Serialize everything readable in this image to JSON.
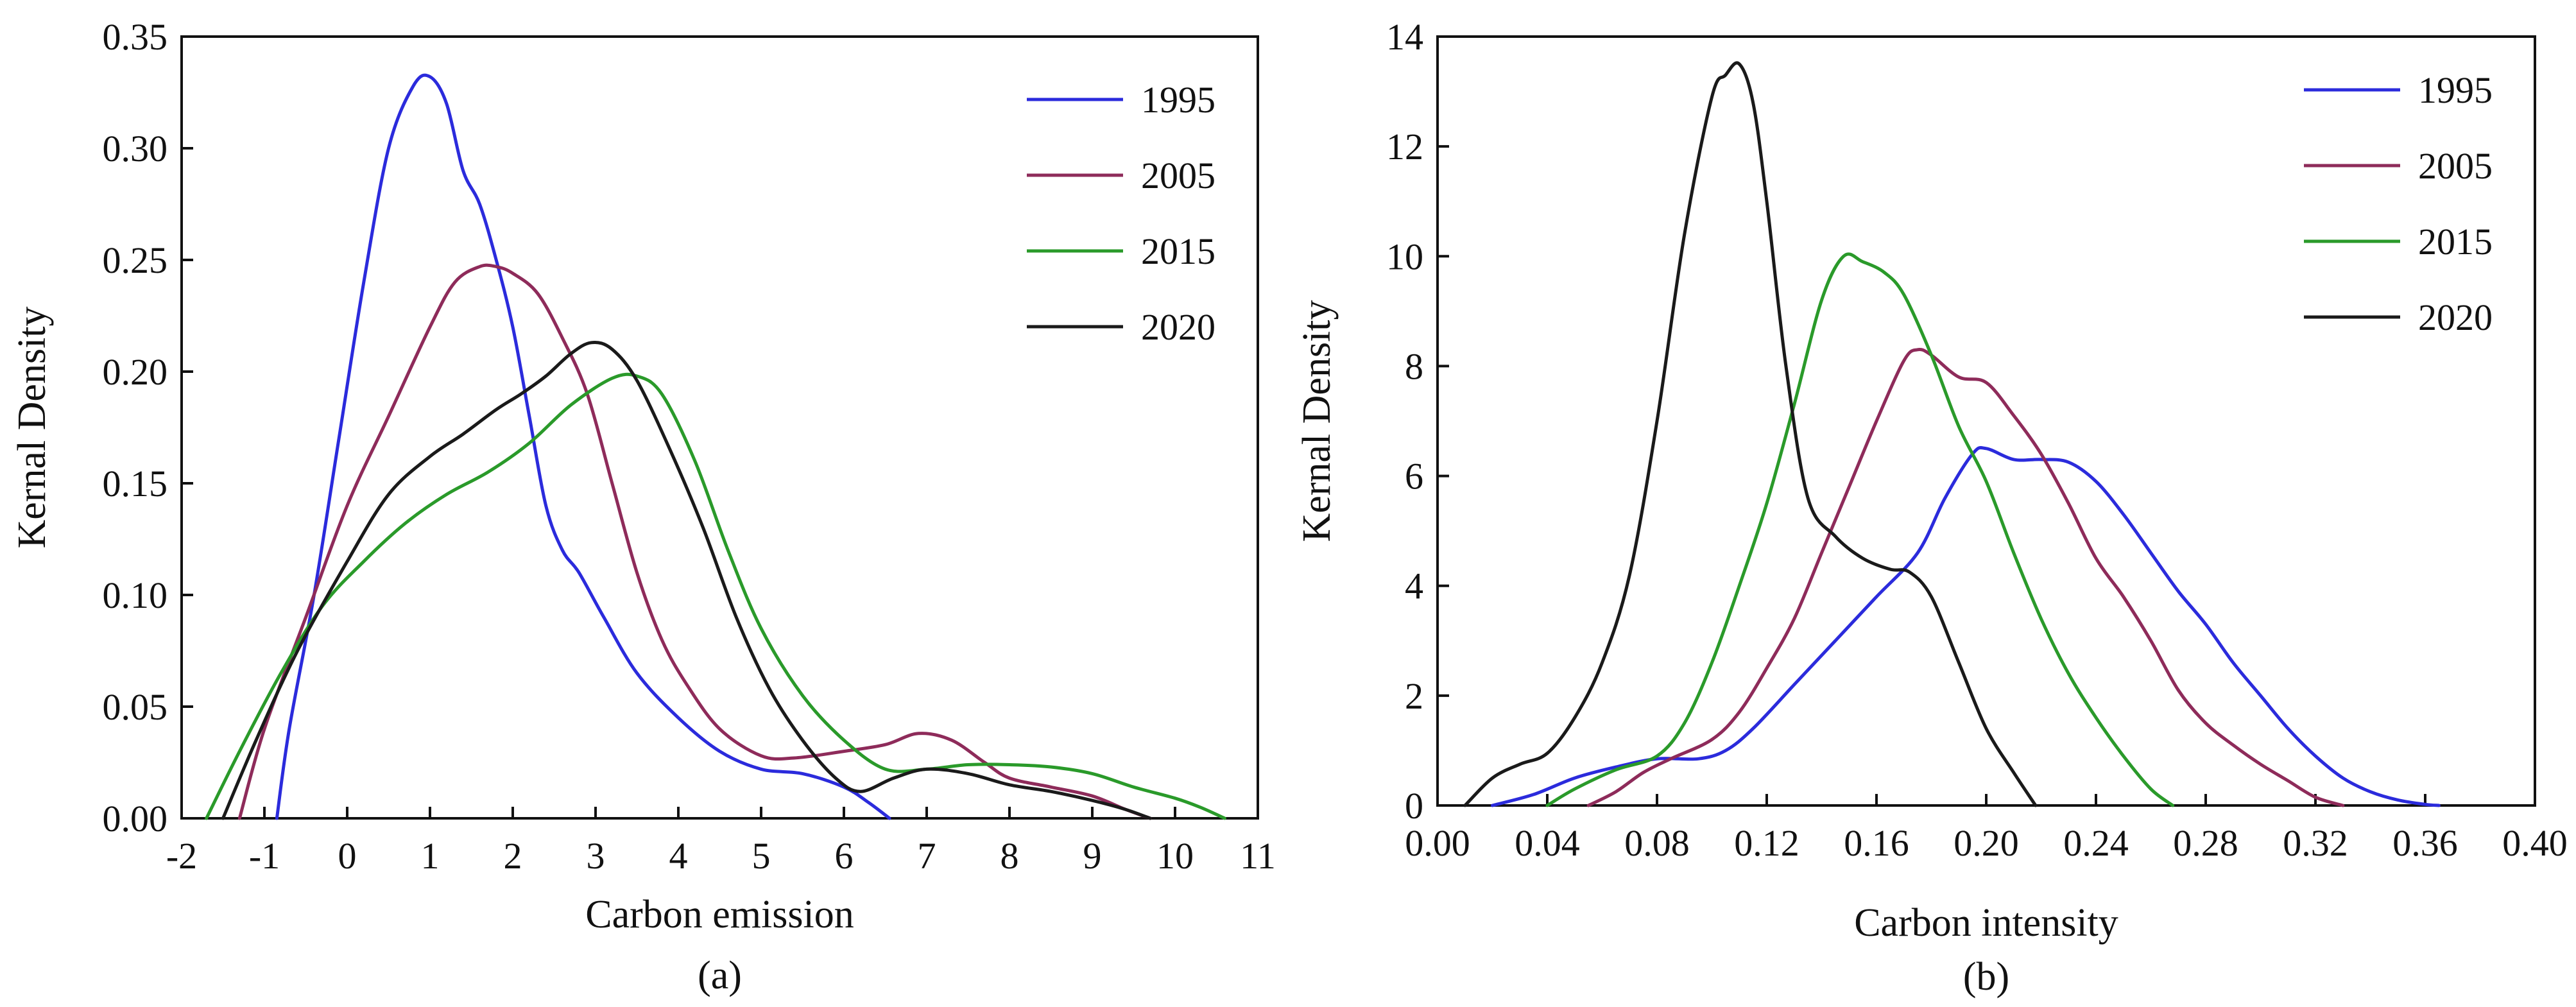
{
  "chart_data": [
    {
      "type": "line",
      "panel_label": "(a)",
      "xlabel": "Carbon emission",
      "ylabel": "Kernal Density",
      "xlim": [
        -2,
        11
      ],
      "ylim": [
        0,
        0.35
      ],
      "x_ticks": [
        -2,
        -1,
        0,
        1,
        2,
        3,
        4,
        5,
        6,
        7,
        8,
        9,
        10,
        11
      ],
      "x_tick_labels": [
        "-2",
        "-1",
        "0",
        "1",
        "2",
        "3",
        "4",
        "5",
        "6",
        "7",
        "8",
        "9",
        "10",
        "11"
      ],
      "y_ticks": [
        0,
        0.05,
        0.1,
        0.15,
        0.2,
        0.25,
        0.3,
        0.35
      ],
      "y_tick_labels": [
        "0.00",
        "0.05",
        "0.10",
        "0.15",
        "0.20",
        "0.25",
        "0.30",
        "0.35"
      ],
      "legend_position": "top-right",
      "grid": false,
      "series": [
        {
          "name": "1995",
          "color": "#2b2bdc",
          "points": [
            [
              -0.85,
              0
            ],
            [
              -0.7,
              0.04
            ],
            [
              -0.4,
              0.1
            ],
            [
              -0.1,
              0.17
            ],
            [
              0.2,
              0.24
            ],
            [
              0.5,
              0.3
            ],
            [
              0.8,
              0.328
            ],
            [
              1.0,
              0.332
            ],
            [
              1.2,
              0.32
            ],
            [
              1.4,
              0.29
            ],
            [
              1.6,
              0.275
            ],
            [
              1.8,
              0.25
            ],
            [
              2.0,
              0.22
            ],
            [
              2.2,
              0.18
            ],
            [
              2.4,
              0.14
            ],
            [
              2.6,
              0.12
            ],
            [
              2.8,
              0.11
            ],
            [
              3.1,
              0.09
            ],
            [
              3.5,
              0.065
            ],
            [
              4.0,
              0.045
            ],
            [
              4.5,
              0.03
            ],
            [
              5.0,
              0.022
            ],
            [
              5.5,
              0.02
            ],
            [
              6.0,
              0.014
            ],
            [
              6.3,
              0.007
            ],
            [
              6.55,
              0
            ]
          ]
        },
        {
          "name": "2005",
          "color": "#8e2b5a",
          "points": [
            [
              -1.3,
              0
            ],
            [
              -1.0,
              0.04
            ],
            [
              -0.5,
              0.09
            ],
            [
              0,
              0.14
            ],
            [
              0.5,
              0.18
            ],
            [
              1.0,
              0.22
            ],
            [
              1.3,
              0.24
            ],
            [
              1.6,
              0.247
            ],
            [
              1.8,
              0.247
            ],
            [
              2.0,
              0.244
            ],
            [
              2.3,
              0.235
            ],
            [
              2.6,
              0.215
            ],
            [
              2.9,
              0.19
            ],
            [
              3.2,
              0.15
            ],
            [
              3.5,
              0.11
            ],
            [
              3.8,
              0.08
            ],
            [
              4.1,
              0.06
            ],
            [
              4.5,
              0.04
            ],
            [
              5.0,
              0.028
            ],
            [
              5.4,
              0.027
            ],
            [
              6.0,
              0.03
            ],
            [
              6.5,
              0.033
            ],
            [
              6.9,
              0.038
            ],
            [
              7.3,
              0.035
            ],
            [
              7.7,
              0.025
            ],
            [
              8.0,
              0.018
            ],
            [
              8.5,
              0.014
            ],
            [
              9.0,
              0.01
            ],
            [
              9.4,
              0.004
            ],
            [
              9.7,
              0
            ]
          ]
        },
        {
          "name": "2015",
          "color": "#2a9a2a",
          "points": [
            [
              -1.7,
              0
            ],
            [
              -1.3,
              0.03
            ],
            [
              -0.8,
              0.065
            ],
            [
              -0.3,
              0.095
            ],
            [
              0.2,
              0.115
            ],
            [
              0.7,
              0.132
            ],
            [
              1.2,
              0.145
            ],
            [
              1.7,
              0.155
            ],
            [
              2.2,
              0.168
            ],
            [
              2.7,
              0.185
            ],
            [
              3.2,
              0.197
            ],
            [
              3.5,
              0.198
            ],
            [
              3.8,
              0.19
            ],
            [
              4.2,
              0.16
            ],
            [
              4.6,
              0.12
            ],
            [
              5.0,
              0.085
            ],
            [
              5.5,
              0.055
            ],
            [
              6.0,
              0.035
            ],
            [
              6.5,
              0.022
            ],
            [
              7.0,
              0.022
            ],
            [
              7.5,
              0.024
            ],
            [
              8.0,
              0.024
            ],
            [
              8.5,
              0.023
            ],
            [
              9.0,
              0.02
            ],
            [
              9.5,
              0.014
            ],
            [
              10.0,
              0.009
            ],
            [
              10.3,
              0.005
            ],
            [
              10.6,
              0
            ]
          ]
        },
        {
          "name": "2020",
          "color": "#1a1a1a",
          "points": [
            [
              -1.5,
              0
            ],
            [
              -1.1,
              0.035
            ],
            [
              -0.6,
              0.075
            ],
            [
              0,
              0.115
            ],
            [
              0.5,
              0.145
            ],
            [
              1.0,
              0.162
            ],
            [
              1.4,
              0.172
            ],
            [
              1.8,
              0.183
            ],
            [
              2.1,
              0.19
            ],
            [
              2.4,
              0.198
            ],
            [
              2.7,
              0.208
            ],
            [
              2.95,
              0.213
            ],
            [
              3.2,
              0.21
            ],
            [
              3.5,
              0.196
            ],
            [
              3.9,
              0.165
            ],
            [
              4.3,
              0.13
            ],
            [
              4.7,
              0.09
            ],
            [
              5.1,
              0.058
            ],
            [
              5.5,
              0.035
            ],
            [
              5.9,
              0.018
            ],
            [
              6.2,
              0.012
            ],
            [
              6.6,
              0.018
            ],
            [
              7.0,
              0.022
            ],
            [
              7.5,
              0.02
            ],
            [
              8.0,
              0.015
            ],
            [
              8.5,
              0.012
            ],
            [
              9.0,
              0.008
            ],
            [
              9.4,
              0.004
            ],
            [
              9.7,
              0
            ]
          ]
        }
      ]
    },
    {
      "type": "line",
      "panel_label": "(b)",
      "xlabel": "Carbon intensity",
      "ylabel": "Kernal Density",
      "xlim": [
        0,
        0.4
      ],
      "ylim": [
        0,
        14
      ],
      "x_ticks": [
        0,
        0.04,
        0.08,
        0.12,
        0.16,
        0.2,
        0.24,
        0.28,
        0.32,
        0.36,
        0.4
      ],
      "x_tick_labels": [
        "0.00",
        "0.04",
        "0.08",
        "0.12",
        "0.16",
        "0.20",
        "0.24",
        "0.28",
        "0.32",
        "0.36",
        "0.40"
      ],
      "y_ticks": [
        0,
        2,
        4,
        6,
        8,
        10,
        12,
        14
      ],
      "y_tick_labels": [
        "0",
        "2",
        "4",
        "6",
        "8",
        "10",
        "12",
        "14"
      ],
      "legend_position": "top-right",
      "grid": false,
      "series": [
        {
          "name": "1995",
          "color": "#2b2bdc",
          "points": [
            [
              0.02,
              0
            ],
            [
              0.035,
              0.2
            ],
            [
              0.05,
              0.5
            ],
            [
              0.065,
              0.7
            ],
            [
              0.08,
              0.85
            ],
            [
              0.095,
              0.85
            ],
            [
              0.105,
              1.0
            ],
            [
              0.115,
              1.4
            ],
            [
              0.13,
              2.2
            ],
            [
              0.145,
              3.0
            ],
            [
              0.16,
              3.8
            ],
            [
              0.175,
              4.6
            ],
            [
              0.185,
              5.6
            ],
            [
              0.195,
              6.4
            ],
            [
              0.2,
              6.5
            ],
            [
              0.21,
              6.3
            ],
            [
              0.22,
              6.3
            ],
            [
              0.23,
              6.25
            ],
            [
              0.24,
              5.9
            ],
            [
              0.25,
              5.3
            ],
            [
              0.26,
              4.6
            ],
            [
              0.27,
              3.9
            ],
            [
              0.28,
              3.3
            ],
            [
              0.29,
              2.6
            ],
            [
              0.3,
              2.0
            ],
            [
              0.31,
              1.4
            ],
            [
              0.32,
              0.9
            ],
            [
              0.33,
              0.5
            ],
            [
              0.34,
              0.25
            ],
            [
              0.35,
              0.1
            ],
            [
              0.36,
              0.02
            ],
            [
              0.365,
              0
            ]
          ]
        },
        {
          "name": "2005",
          "color": "#8e2b5a",
          "points": [
            [
              0.055,
              0
            ],
            [
              0.065,
              0.25
            ],
            [
              0.075,
              0.6
            ],
            [
              0.085,
              0.85
            ],
            [
              0.1,
              1.2
            ],
            [
              0.11,
              1.7
            ],
            [
              0.12,
              2.5
            ],
            [
              0.13,
              3.4
            ],
            [
              0.14,
              4.6
            ],
            [
              0.15,
              5.8
            ],
            [
              0.16,
              7.0
            ],
            [
              0.17,
              8.1
            ],
            [
              0.175,
              8.3
            ],
            [
              0.18,
              8.2
            ],
            [
              0.19,
              7.8
            ],
            [
              0.2,
              7.7
            ],
            [
              0.21,
              7.1
            ],
            [
              0.22,
              6.4
            ],
            [
              0.23,
              5.5
            ],
            [
              0.24,
              4.5
            ],
            [
              0.25,
              3.8
            ],
            [
              0.26,
              3.0
            ],
            [
              0.27,
              2.1
            ],
            [
              0.28,
              1.5
            ],
            [
              0.29,
              1.1
            ],
            [
              0.3,
              0.75
            ],
            [
              0.31,
              0.45
            ],
            [
              0.32,
              0.15
            ],
            [
              0.33,
              0
            ]
          ]
        },
        {
          "name": "2015",
          "color": "#2a9a2a",
          "points": [
            [
              0.04,
              0
            ],
            [
              0.05,
              0.3
            ],
            [
              0.065,
              0.65
            ],
            [
              0.08,
              0.9
            ],
            [
              0.09,
              1.5
            ],
            [
              0.1,
              2.6
            ],
            [
              0.11,
              4.0
            ],
            [
              0.12,
              5.5
            ],
            [
              0.13,
              7.3
            ],
            [
              0.14,
              9.2
            ],
            [
              0.148,
              10.0
            ],
            [
              0.155,
              9.9
            ],
            [
              0.163,
              9.7
            ],
            [
              0.17,
              9.3
            ],
            [
              0.18,
              8.2
            ],
            [
              0.19,
              6.9
            ],
            [
              0.2,
              5.9
            ],
            [
              0.21,
              4.6
            ],
            [
              0.22,
              3.4
            ],
            [
              0.23,
              2.4
            ],
            [
              0.24,
              1.6
            ],
            [
              0.25,
              0.9
            ],
            [
              0.26,
              0.3
            ],
            [
              0.268,
              0
            ]
          ]
        },
        {
          "name": "2020",
          "color": "#1a1a1a",
          "points": [
            [
              0.01,
              0
            ],
            [
              0.02,
              0.5
            ],
            [
              0.03,
              0.75
            ],
            [
              0.04,
              0.95
            ],
            [
              0.05,
              1.6
            ],
            [
              0.06,
              2.6
            ],
            [
              0.07,
              4.2
            ],
            [
              0.08,
              7.0
            ],
            [
              0.09,
              10.4
            ],
            [
              0.1,
              12.9
            ],
            [
              0.105,
              13.3
            ],
            [
              0.11,
              13.5
            ],
            [
              0.115,
              12.8
            ],
            [
              0.12,
              11.0
            ],
            [
              0.127,
              8.0
            ],
            [
              0.135,
              5.6
            ],
            [
              0.145,
              4.9
            ],
            [
              0.155,
              4.5
            ],
            [
              0.165,
              4.3
            ],
            [
              0.172,
              4.25
            ],
            [
              0.18,
              3.8
            ],
            [
              0.19,
              2.6
            ],
            [
              0.2,
              1.4
            ],
            [
              0.21,
              0.6
            ],
            [
              0.218,
              0
            ]
          ]
        }
      ]
    }
  ]
}
